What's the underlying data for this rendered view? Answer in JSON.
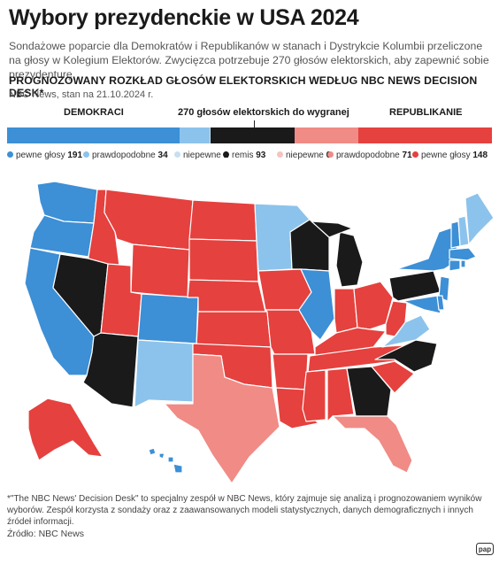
{
  "header": {
    "title": "Wybory prezydenckie w USA 2024",
    "subtitle": "Sondażowe poparcie dla Demokratów i Republikanów w stanach i Dystrykcie Kolumbii przeliczone na głosy w Kolegium Elektorów. Zwycięzca potrzebuje 270 głosów elektorskich, aby zapewnić sobie prezydenturę.",
    "section_title": "PROGNOZOWANY ROZKŁAD GŁOSÓW ELEKTORSKICH WEDŁUG NBC NEWS DECISION DESK*",
    "source_line": "NBC News, stan na 21.10.2024 r."
  },
  "bar": {
    "dem_label": "DEMOKRACI",
    "center_label": "270 głosów elektorskich do wygranej",
    "rep_label": "REPUBLIKANIE",
    "total": 538,
    "threshold": 270
  },
  "legend": [
    {
      "label": "pewne głosy",
      "value": 191,
      "color": "#3d8fd6"
    },
    {
      "label": "prawdopodobne",
      "value": 34,
      "color": "#8cc3ec"
    },
    {
      "label": "niepewne",
      "value": 1,
      "color": "#c5e0f4"
    },
    {
      "label": "remis",
      "value": 93,
      "color": "#1a1a1a"
    },
    {
      "label": "niepewne",
      "value": 0,
      "color": "#f6c2bf"
    },
    {
      "label": "prawdopodobne",
      "value": 71,
      "color": "#f08b86"
    },
    {
      "label": "pewne głosy",
      "value": 148,
      "color": "#e5413e"
    }
  ],
  "map": {
    "colors": {
      "dem_solid": "#3d8fd6",
      "dem_likely": "#8cc3ec",
      "tossup": "#1a1a1a",
      "rep_likely": "#f08b86",
      "rep_solid": "#e5413e"
    }
  },
  "footer": {
    "note": "*\"The NBC News' Decision Desk\" to specjalny zespół w NBC News, który zajmuje się analizą i prognozowaniem wyników wyborów. Zespół korzysta z sondaży oraz z zaawansowanych modeli statystycznych, danych demograficznych i innych źródeł informacji.",
    "source": "Źródło: NBC News",
    "logo_text": "pap"
  }
}
